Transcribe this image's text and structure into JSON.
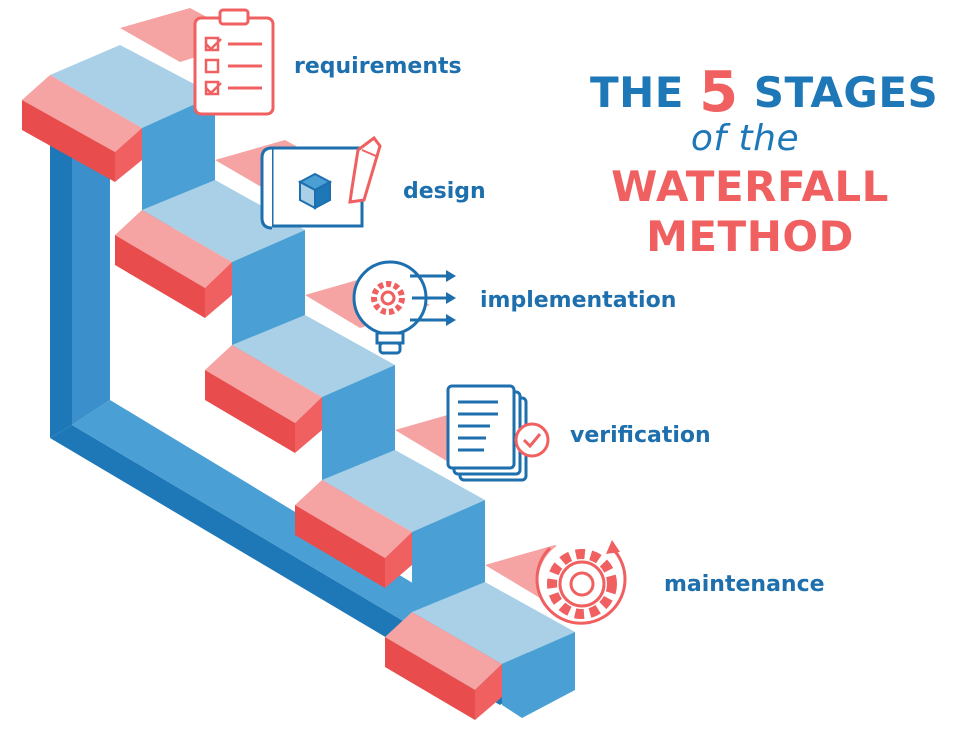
{
  "title": {
    "line1_prefix": "THE",
    "line1_number": "5",
    "line1_suffix": "STAGES",
    "line2": "of the",
    "line3": "WATERFALL",
    "line4": "METHOD"
  },
  "stages": [
    {
      "label": "requirements",
      "icon": "clipboard-checklist-icon"
    },
    {
      "label": "design",
      "icon": "blueprint-pencil-icon"
    },
    {
      "label": "implementation",
      "icon": "lightbulb-gear-icon"
    },
    {
      "label": "verification",
      "icon": "documents-check-icon"
    },
    {
      "label": "maintenance",
      "icon": "gear-refresh-icon"
    }
  ],
  "colors": {
    "blue_dark": "#1e78b8",
    "blue_mid": "#4a9fd4",
    "blue_light": "#a9d0e6",
    "coral": "#f06060",
    "coral_light": "#f5a3a3",
    "coral_dark": "#e84c4c"
  }
}
